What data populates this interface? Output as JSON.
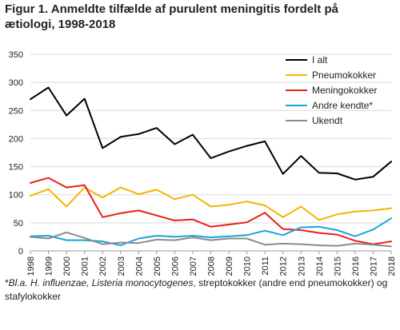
{
  "title": "Figur 1. Anmeldte tilfælde af purulent meningitis fordelt på ætiologi, 1998-2018",
  "footnote_pre": "Bl.a. H. influenzae, Listeria monocytogenes",
  "footnote_mark": "*",
  "footnote_rest": ", streptokokker (andre end pneumokokker) og stafylokokker",
  "chart_data": {
    "type": "line",
    "x": [
      "1998",
      "1999",
      "2000",
      "2001",
      "2002",
      "2003",
      "2004",
      "2005",
      "2006",
      "2007",
      "2008",
      "2009",
      "2010",
      "2011",
      "2012",
      "2013",
      "2014",
      "2015",
      "2016",
      "2017",
      "2018"
    ],
    "ylim": [
      0,
      350
    ],
    "yticks": [
      0,
      50,
      100,
      150,
      200,
      250,
      300,
      350
    ],
    "grid": true,
    "legend_position": "top-right",
    "series": [
      {
        "name": "I alt",
        "color": "#000000",
        "values": [
          270,
          291,
          241,
          271,
          183,
          203,
          208,
          219,
          190,
          207,
          165,
          177,
          187,
          195,
          137,
          169,
          139,
          138,
          127,
          132,
          159
        ]
      },
      {
        "name": "Pneumokokker",
        "color": "#f5b400",
        "values": [
          98,
          110,
          79,
          113,
          95,
          113,
          101,
          109,
          92,
          100,
          79,
          82,
          88,
          81,
          60,
          79,
          55,
          65,
          70,
          72,
          76
        ]
      },
      {
        "name": "Meningokokker",
        "color": "#e8201c",
        "values": [
          121,
          130,
          113,
          117,
          60,
          67,
          72,
          63,
          54,
          56,
          43,
          47,
          51,
          68,
          39,
          37,
          32,
          29,
          18,
          12,
          17
        ]
      },
      {
        "name": "Andre kendte*",
        "color": "#1aa3dc",
        "values": [
          26,
          27,
          19,
          19,
          17,
          10,
          22,
          27,
          25,
          27,
          24,
          26,
          28,
          36,
          28,
          42,
          43,
          37,
          26,
          38,
          58
        ]
      },
      {
        "name": "Ukendt",
        "color": "#8c8c8c",
        "values": [
          25,
          22,
          33,
          23,
          12,
          15,
          14,
          20,
          19,
          24,
          19,
          22,
          22,
          11,
          13,
          12,
          10,
          9,
          13,
          11,
          8
        ]
      }
    ]
  }
}
